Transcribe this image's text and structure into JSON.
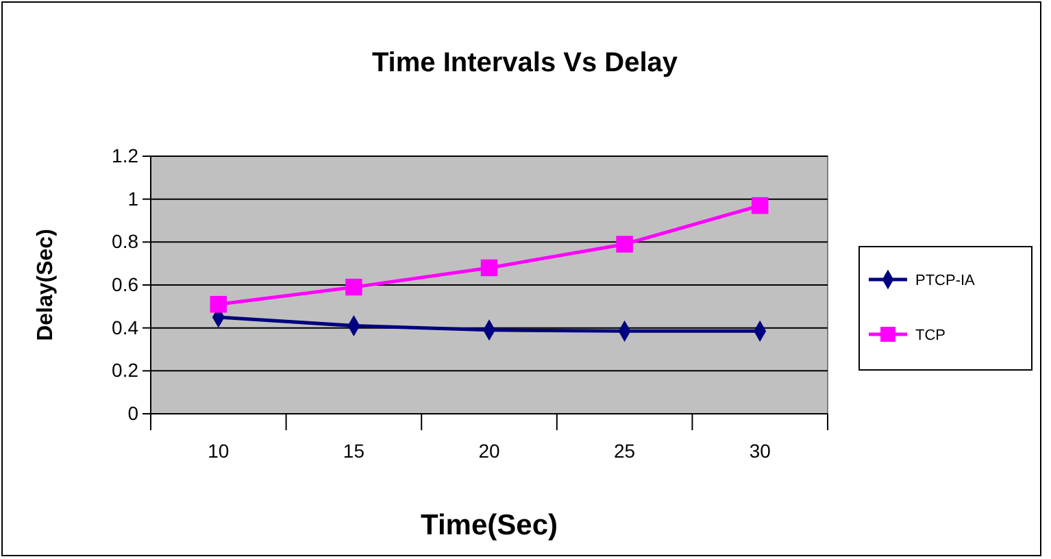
{
  "chart_data": {
    "type": "line",
    "title": "Time Intervals Vs Delay",
    "xlabel": "Time(Sec)",
    "ylabel": "Delay(Sec)",
    "categories": [
      "10",
      "15",
      "20",
      "25",
      "30"
    ],
    "series": [
      {
        "name": "PTCP-IA",
        "color": "#000080",
        "marker": "diamond",
        "values": [
          0.45,
          0.41,
          0.39,
          0.385,
          0.385
        ]
      },
      {
        "name": "TCP",
        "color": "#ff00ff",
        "marker": "square",
        "values": [
          0.51,
          0.59,
          0.68,
          0.79,
          0.97
        ]
      }
    ],
    "ylim": [
      0,
      1.2
    ],
    "yticks": [
      0,
      0.2,
      0.4,
      0.6,
      0.8,
      1,
      1.2
    ],
    "grid": "y",
    "legend": "right"
  }
}
